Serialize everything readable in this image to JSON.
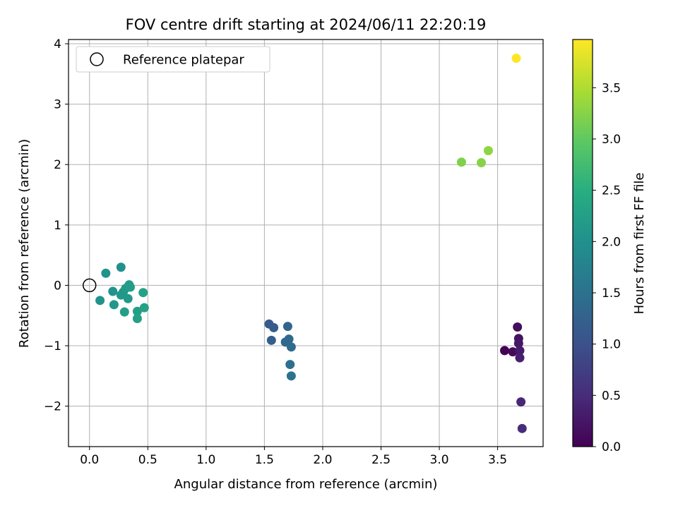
{
  "chart_data": {
    "type": "scatter",
    "title": "FOV centre drift starting at 2024/06/11 22:20:19",
    "xlabel": "Angular distance from reference (arcmin)",
    "ylabel": "Rotation from reference (arcmin)",
    "xlim": [
      -0.18,
      3.89
    ],
    "ylim": [
      -2.67,
      4.07
    ],
    "xticks": [
      0.0,
      0.5,
      1.0,
      1.5,
      2.0,
      2.5,
      3.0,
      3.5
    ],
    "xtick_labels": [
      "0.0",
      "0.5",
      "1.0",
      "1.5",
      "2.0",
      "2.5",
      "3.0",
      "3.5"
    ],
    "yticks": [
      -2,
      -1,
      0,
      1,
      2,
      3,
      4
    ],
    "ytick_labels": [
      "−2",
      "−1",
      "0",
      "1",
      "2",
      "3",
      "4"
    ],
    "grid": true,
    "legend": {
      "position": "upper-left",
      "entries": [
        "Reference platepar"
      ]
    },
    "reference_point": {
      "x": 0.0,
      "y": 0.0
    },
    "colorbar": {
      "label": "Hours from first FF file",
      "colormap": "viridis",
      "range": [
        0.0,
        3.97
      ],
      "ticks": [
        0.0,
        0.5,
        1.0,
        1.5,
        2.0,
        2.5,
        3.0,
        3.5
      ],
      "tick_labels": [
        "0.0",
        "0.5",
        "1.0",
        "1.5",
        "2.0",
        "2.5",
        "3.0",
        "3.5"
      ]
    },
    "points": [
      {
        "x": 3.56,
        "y": -1.08,
        "hours": 0.0
      },
      {
        "x": 3.63,
        "y": -1.1,
        "hours": 0.1
      },
      {
        "x": 3.67,
        "y": -0.69,
        "hours": 0.15
      },
      {
        "x": 3.68,
        "y": -0.88,
        "hours": 0.2
      },
      {
        "x": 3.68,
        "y": -0.96,
        "hours": 0.25
      },
      {
        "x": 3.69,
        "y": -1.08,
        "hours": 0.3
      },
      {
        "x": 3.69,
        "y": -1.2,
        "hours": 0.35
      },
      {
        "x": 3.7,
        "y": -1.93,
        "hours": 0.45
      },
      {
        "x": 3.71,
        "y": -2.37,
        "hours": 0.5
      },
      {
        "x": 1.54,
        "y": -0.64,
        "hours": 1.15
      },
      {
        "x": 1.58,
        "y": -0.7,
        "hours": 1.18
      },
      {
        "x": 1.56,
        "y": -0.91,
        "hours": 1.2
      },
      {
        "x": 1.7,
        "y": -0.68,
        "hours": 1.3
      },
      {
        "x": 1.68,
        "y": -0.94,
        "hours": 1.33
      },
      {
        "x": 1.71,
        "y": -0.89,
        "hours": 1.36
      },
      {
        "x": 1.73,
        "y": -1.02,
        "hours": 1.4
      },
      {
        "x": 1.72,
        "y": -1.31,
        "hours": 1.45
      },
      {
        "x": 1.73,
        "y": -1.5,
        "hours": 1.5
      },
      {
        "x": 0.27,
        "y": 0.3,
        "hours": 2.0
      },
      {
        "x": 0.14,
        "y": 0.2,
        "hours": 2.02
      },
      {
        "x": 0.09,
        "y": -0.25,
        "hours": 2.04
      },
      {
        "x": 0.2,
        "y": -0.1,
        "hours": 2.06
      },
      {
        "x": 0.21,
        "y": -0.32,
        "hours": 2.08
      },
      {
        "x": 0.27,
        "y": -0.16,
        "hours": 2.1
      },
      {
        "x": 0.29,
        "y": -0.11,
        "hours": 2.12
      },
      {
        "x": 0.31,
        "y": -0.05,
        "hours": 2.14
      },
      {
        "x": 0.33,
        "y": -0.22,
        "hours": 2.16
      },
      {
        "x": 0.34,
        "y": 0.01,
        "hours": 2.18
      },
      {
        "x": 0.35,
        "y": -0.03,
        "hours": 2.2
      },
      {
        "x": 0.3,
        "y": -0.44,
        "hours": 2.22
      },
      {
        "x": 0.41,
        "y": -0.43,
        "hours": 2.24
      },
      {
        "x": 0.41,
        "y": -0.55,
        "hours": 2.26
      },
      {
        "x": 0.46,
        "y": -0.12,
        "hours": 2.28
      },
      {
        "x": 0.47,
        "y": -0.37,
        "hours": 2.3
      },
      {
        "x": 3.19,
        "y": 2.04,
        "hours": 3.2
      },
      {
        "x": 3.36,
        "y": 2.03,
        "hours": 3.25
      },
      {
        "x": 3.42,
        "y": 2.23,
        "hours": 3.3
      },
      {
        "x": 3.66,
        "y": 3.76,
        "hours": 3.97
      }
    ]
  }
}
